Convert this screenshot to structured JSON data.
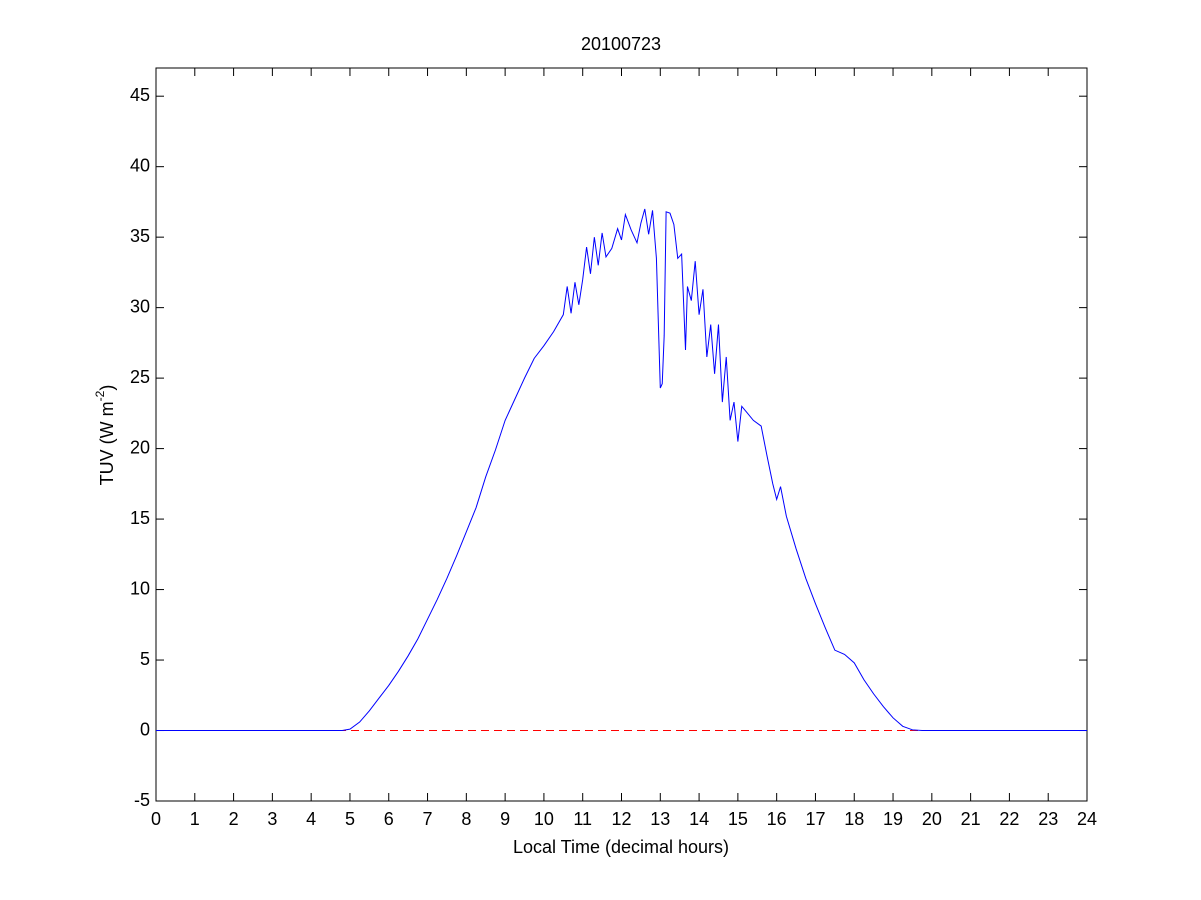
{
  "chart_data": {
    "type": "line",
    "title": "20100723",
    "xlabel": "Local Time (decimal hours)",
    "ylabel": {
      "text": "TUV (W m",
      "sup": "-2",
      "tail": ")"
    },
    "x": [
      0,
      4.8,
      5,
      5.25,
      5.5,
      5.75,
      6,
      6.25,
      6.5,
      6.75,
      7,
      7.25,
      7.5,
      7.75,
      8,
      8.25,
      8.5,
      8.75,
      9,
      9.25,
      9.5,
      9.75,
      10,
      10.25,
      10.5,
      10.6,
      10.7,
      10.8,
      10.9,
      11,
      11.1,
      11.2,
      11.3,
      11.4,
      11.5,
      11.6,
      11.75,
      11.9,
      12,
      12.1,
      12.25,
      12.4,
      12.5,
      12.6,
      12.7,
      12.8,
      12.9,
      13,
      13.05,
      13.1,
      13.15,
      13.25,
      13.35,
      13.45,
      13.55,
      13.65,
      13.7,
      13.8,
      13.9,
      14,
      14.1,
      14.2,
      14.3,
      14.4,
      14.5,
      14.6,
      14.7,
      14.8,
      14.9,
      15,
      15.1,
      15.25,
      15.4,
      15.6,
      15.75,
      15.9,
      16,
      16.1,
      16.25,
      16.5,
      16.75,
      17,
      17.25,
      17.5,
      17.75,
      18,
      18.25,
      18.5,
      18.75,
      19,
      19.25,
      19.5,
      19.75,
      24
    ],
    "values": [
      0,
      0,
      0.1,
      0.6,
      1.4,
      2.3,
      3.2,
      4.2,
      5.3,
      6.5,
      7.9,
      9.3,
      10.8,
      12.4,
      14.1,
      15.8,
      18,
      19.9,
      22,
      23.5,
      25,
      26.4,
      27.3,
      28.3,
      29.5,
      31.5,
      29.6,
      31.8,
      30.2,
      32,
      34.3,
      32.4,
      35,
      33,
      35.3,
      33.6,
      34.2,
      35.6,
      34.8,
      36.6,
      35.5,
      34.6,
      36,
      37,
      35.2,
      36.9,
      33.5,
      24.3,
      24.6,
      28,
      36.8,
      36.7,
      35.9,
      33.5,
      33.8,
      27,
      31.5,
      30.5,
      33.3,
      29.5,
      31.3,
      26.5,
      28.8,
      25.3,
      28.8,
      23.3,
      26.5,
      22,
      23.3,
      20.5,
      23,
      22.5,
      22,
      21.6,
      19.5,
      17.5,
      16.4,
      17.3,
      15.2,
      12.9,
      10.8,
      9,
      7.3,
      5.7,
      5.4,
      4.8,
      3.6,
      2.6,
      1.7,
      0.9,
      0.3,
      0.05,
      0,
      0
    ],
    "color": "#0000ff",
    "hlines": [
      {
        "value": 0,
        "color": "#ff0000",
        "style": "dashed"
      }
    ],
    "xlim": [
      0,
      24
    ],
    "xticks": [
      0,
      1,
      2,
      3,
      4,
      5,
      6,
      7,
      8,
      9,
      10,
      11,
      12,
      13,
      14,
      15,
      16,
      17,
      18,
      19,
      20,
      21,
      22,
      23,
      24
    ],
    "ylim": [
      -5,
      47
    ],
    "yticks": [
      -5,
      0,
      5,
      10,
      15,
      20,
      25,
      30,
      35,
      40,
      45
    ],
    "grid": false
  }
}
